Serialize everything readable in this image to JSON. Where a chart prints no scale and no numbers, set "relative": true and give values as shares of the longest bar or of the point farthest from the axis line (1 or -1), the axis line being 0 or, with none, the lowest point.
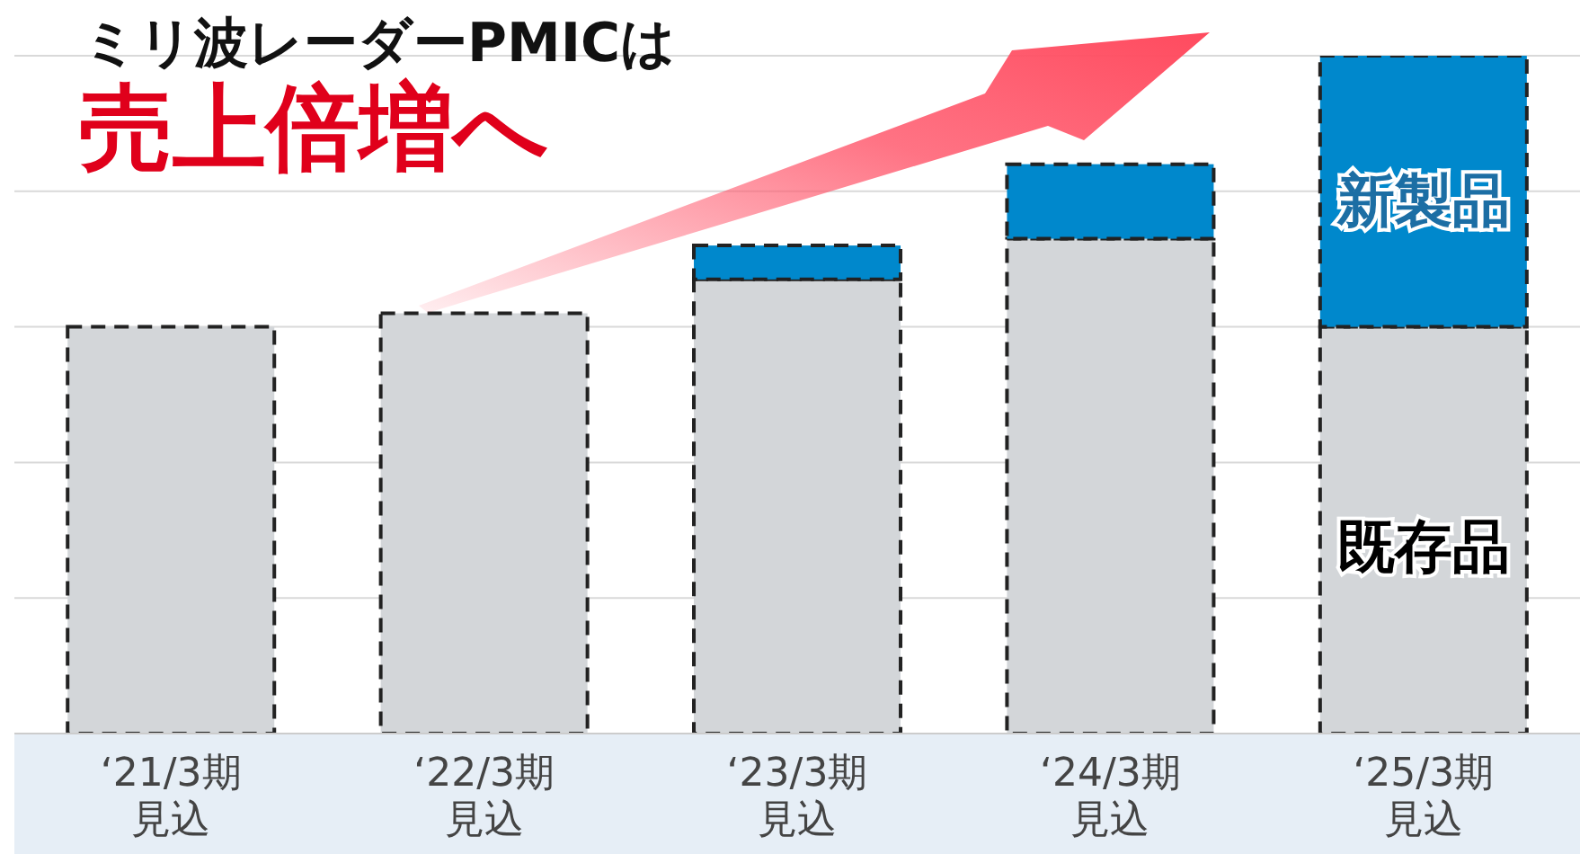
{
  "chart_data": {
    "type": "bar",
    "title": "ミリ波レーダーPMICは",
    "subtitle": "売上倍増へ",
    "categories": [
      "‘21/3期見込",
      "‘22/3期見込",
      "‘23/3期見込",
      "‘24/3期見込",
      "‘25/3期見込"
    ],
    "stacked": true,
    "relative": true,
    "grid": "y",
    "series": [
      {
        "name": "既存品",
        "color": "#d3d6d9",
        "values": [
          0.6,
          0.62,
          0.67,
          0.73,
          0.6
        ]
      },
      {
        "name": "新製品",
        "color": "#0088cc",
        "values": [
          0,
          0,
          0.05,
          0.11,
          0.4
        ]
      }
    ]
  }
}
